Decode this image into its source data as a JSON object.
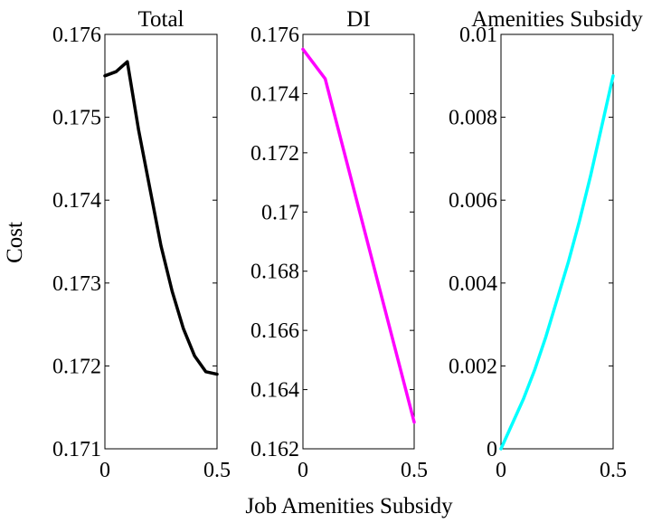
{
  "figure": {
    "xlabel": "Job Amenities Subsidy",
    "ylabel": "Cost"
  },
  "chart_data": [
    {
      "type": "line",
      "title": "Total",
      "xlim": [
        0,
        0.5
      ],
      "ylim": [
        0.171,
        0.176
      ],
      "xticks": [
        "0",
        "0.5"
      ],
      "yticks": [
        "0.171",
        "0.172",
        "0.173",
        "0.174",
        "0.175",
        "0.176"
      ],
      "color": "#000000",
      "x": [
        0,
        0.05,
        0.1,
        0.15,
        0.2,
        0.25,
        0.3,
        0.35,
        0.4,
        0.45,
        0.5
      ],
      "y": [
        0.1755,
        0.17555,
        0.17567,
        0.17485,
        0.17415,
        0.17345,
        0.1729,
        0.17245,
        0.17212,
        0.17193,
        0.1719
      ]
    },
    {
      "type": "line",
      "title": "DI",
      "xlim": [
        0,
        0.5
      ],
      "ylim": [
        0.162,
        0.176
      ],
      "xticks": [
        "0",
        "0.5"
      ],
      "yticks": [
        "0.162",
        "0.164",
        "0.166",
        "0.168",
        "0.17",
        "0.172",
        "0.174",
        "0.176"
      ],
      "color": "#ff00ff",
      "x": [
        0,
        0.1,
        0.5
      ],
      "y": [
        0.1755,
        0.1745,
        0.1629
      ]
    },
    {
      "type": "line",
      "title": "Amenities Subsidy",
      "xlim": [
        0,
        0.5
      ],
      "ylim": [
        0,
        0.01
      ],
      "xticks": [
        "0",
        "0.5"
      ],
      "yticks": [
        "0",
        "0.002",
        "0.004",
        "0.006",
        "0.008",
        "0.01"
      ],
      "color": "#00ffff",
      "x": [
        0,
        0.05,
        0.1,
        0.15,
        0.2,
        0.25,
        0.3,
        0.35,
        0.4,
        0.45,
        0.5
      ],
      "y": [
        0,
        0.0006,
        0.0012,
        0.0019,
        0.0027,
        0.0036,
        0.0045,
        0.0055,
        0.0066,
        0.0078,
        0.009
      ]
    }
  ]
}
